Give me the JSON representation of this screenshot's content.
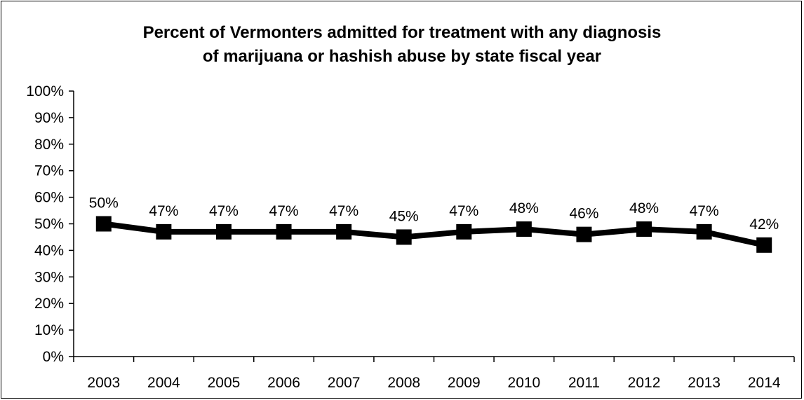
{
  "chart_data": {
    "type": "line",
    "title_line1": "Percent of Vermonters admitted for treatment with any diagnosis",
    "title_line2": "of marijuana or hashish abuse by state fiscal year",
    "xlabel": "",
    "ylabel": "",
    "categories": [
      "2003",
      "2004",
      "2005",
      "2006",
      "2007",
      "2008",
      "2009",
      "2010",
      "2011",
      "2012",
      "2013",
      "2014"
    ],
    "series": [
      {
        "values": [
          50,
          47,
          47,
          47,
          47,
          45,
          47,
          48,
          46,
          48,
          47,
          42
        ]
      }
    ],
    "data_labels": [
      "50%",
      "47%",
      "47%",
      "47%",
      "47%",
      "45%",
      "47%",
      "48%",
      "46%",
      "48%",
      "47%",
      "42%"
    ],
    "ylim": [
      0,
      100
    ],
    "y_ticks": [
      0,
      10,
      20,
      30,
      40,
      50,
      60,
      70,
      80,
      90,
      100
    ],
    "y_tick_labels": [
      "0%",
      "10%",
      "20%",
      "30%",
      "40%",
      "50%",
      "60%",
      "70%",
      "80%",
      "90%",
      "100%"
    ],
    "grid": false,
    "legend": "none",
    "series_color": "#000000",
    "marker": "square"
  }
}
